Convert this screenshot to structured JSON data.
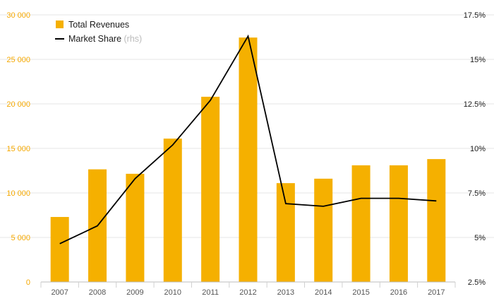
{
  "chart_data": {
    "type": "bar+line",
    "categories": [
      "2007",
      "2008",
      "2009",
      "2010",
      "2011",
      "2012",
      "2013",
      "2014",
      "2015",
      "2016",
      "2017"
    ],
    "series": [
      {
        "name": "Total Revenues",
        "type": "bar",
        "axis": "left",
        "color": "#f5b000",
        "values": [
          7300,
          12650,
          12150,
          16100,
          20800,
          27450,
          11100,
          11600,
          13100,
          13100,
          13800
        ]
      },
      {
        "name": "Market Share",
        "name_suffix": "(rhs)",
        "type": "line",
        "axis": "right",
        "color": "#000000",
        "values": [
          4.65,
          5.65,
          8.3,
          10.2,
          12.7,
          16.3,
          6.9,
          6.75,
          7.2,
          7.2,
          7.05
        ]
      }
    ],
    "left_axis": {
      "ylim": [
        0,
        30000
      ],
      "ticks": [
        0,
        5000,
        10000,
        15000,
        20000,
        25000,
        30000
      ],
      "tick_labels": [
        "0",
        "5 000",
        "10 000",
        "15 000",
        "20 000",
        "25 000",
        "30 000"
      ],
      "color": "#f5a800"
    },
    "right_axis": {
      "ylim": [
        2.5,
        17.5
      ],
      "ticks": [
        2.5,
        5,
        7.5,
        10,
        12.5,
        15,
        17.5
      ],
      "tick_labels": [
        "2.5%",
        "5%",
        "7.5%",
        "10%",
        "12.5%",
        "15%",
        "17.5%"
      ],
      "color": "#1a1a1a"
    },
    "grid": true,
    "legend_position": "top-left"
  }
}
